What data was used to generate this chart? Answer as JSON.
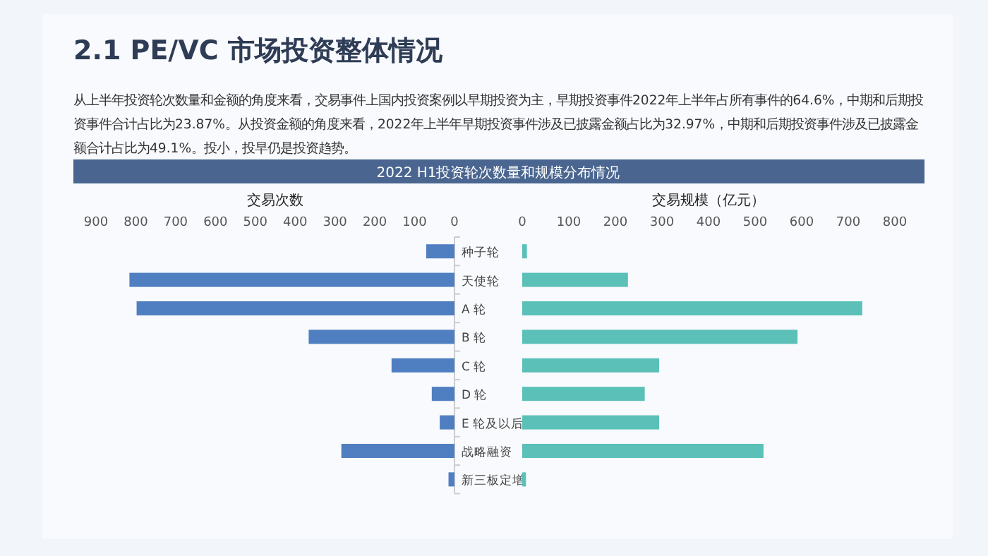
{
  "chart_data": [
    {
      "type": "bar",
      "orientation": "horizontal",
      "title": "2.1  PE/VC 市场投资整体情况",
      "subtitle": "从上半年投资轮次数量和金额的角度来看，交易事件上国内投资案例以早期投资为主，早期投资事件2022年上半年占所有事件的64.6%，中期和后期投资事件合计占比为23.87%。从投资金额的角度来看，2022年上半年早期投资事件涉及已披露金额占比为32.97%，中期和后期投资事件涉及已披露金额合计占比为49.1%。投小，投早仍是投资趋势。",
      "annotations": [
        "2022 H1投资轮次数量和规模分布情况"
      ],
      "xlabel": "交易次数",
      "categories": [
        null,
        null,
        null,
        null,
        null,
        null,
        null,
        null,
        null
      ],
      "series": [
        {
          "color": "#4f7fc0",
          "values": [
            71,
            816,
            798,
            366,
            158,
            57,
            37,
            284,
            15
          ]
        }
      ],
      "xlim": [
        900,
        0
      ],
      "xticks": [
        900,
        800,
        700,
        600,
        500,
        400,
        300,
        200,
        100,
        0
      ],
      "tick_labels": "x",
      "grid": false
    },
    {
      "type": "bar",
      "orientation": "horizontal",
      "xlabel": "交易规模（亿元）",
      "categories": [
        "种子轮",
        "天使轮",
        "A 轮",
        "B 轮",
        "C 轮",
        "D 轮",
        "E 轮及以后",
        "战略融资",
        "新三板定增"
      ],
      "series": [
        {
          "color": "#5bc0b8",
          "values": [
            10,
            227,
            730,
            591,
            294,
            263,
            294,
            518,
            8
          ]
        }
      ],
      "xlim": [
        0,
        800
      ],
      "xticks": [
        0,
        100,
        200,
        300,
        400,
        500,
        600,
        700,
        800
      ],
      "grid": false
    }
  ]
}
